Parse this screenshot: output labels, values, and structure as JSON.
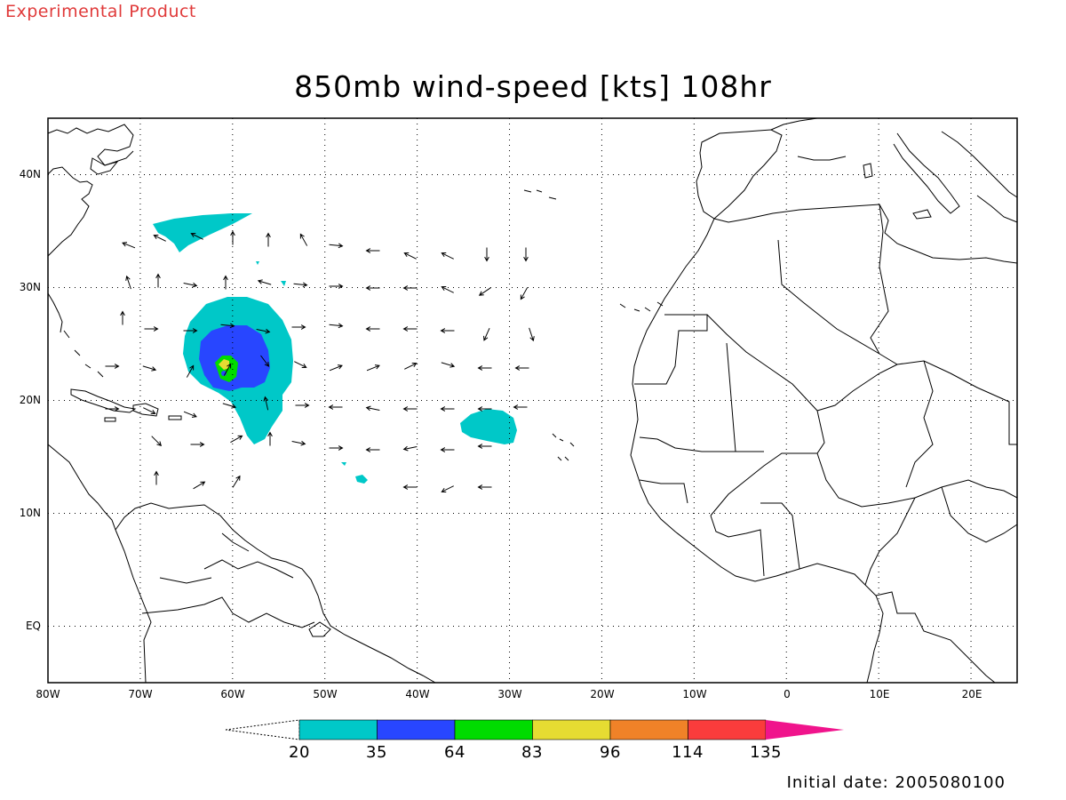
{
  "header": {
    "product_tag": "Experimental Product",
    "title": "850mb wind-speed [kts] 108hr"
  },
  "map": {
    "domain_lon": [
      -80,
      25
    ],
    "domain_lat": [
      -5,
      45
    ],
    "lat_labels": [
      {
        "label": "40N",
        "lat": 40
      },
      {
        "label": "30N",
        "lat": 30
      },
      {
        "label": "20N",
        "lat": 20
      },
      {
        "label": "10N",
        "lat": 10
      },
      {
        "label": "EQ",
        "lat": 0
      }
    ],
    "lon_labels": [
      {
        "label": "80W",
        "lon": -80
      },
      {
        "label": "70W",
        "lon": -70
      },
      {
        "label": "60W",
        "lon": -60
      },
      {
        "label": "50W",
        "lon": -50
      },
      {
        "label": "40W",
        "lon": -40
      },
      {
        "label": "30W",
        "lon": -30
      },
      {
        "label": "20W",
        "lon": -20
      },
      {
        "label": "10W",
        "lon": -10
      },
      {
        "label": "0",
        "lon": 0
      },
      {
        "label": "10E",
        "lon": 10
      },
      {
        "label": "20E",
        "lon": 20
      }
    ],
    "gridline_style": "dotted",
    "land_colour": "#ffffff",
    "coast_colour": "#000000"
  },
  "colorbar": {
    "labels": [
      "20",
      "35",
      "64",
      "83",
      "96",
      "114",
      "135"
    ],
    "colors": [
      "#00c8c8",
      "#2846ff",
      "#00dc00",
      "#e6dc32",
      "#f08228",
      "#fa3c3c",
      "#f0148c"
    ]
  },
  "footer": {
    "initial_date": "Initial date: 2005080100"
  }
}
